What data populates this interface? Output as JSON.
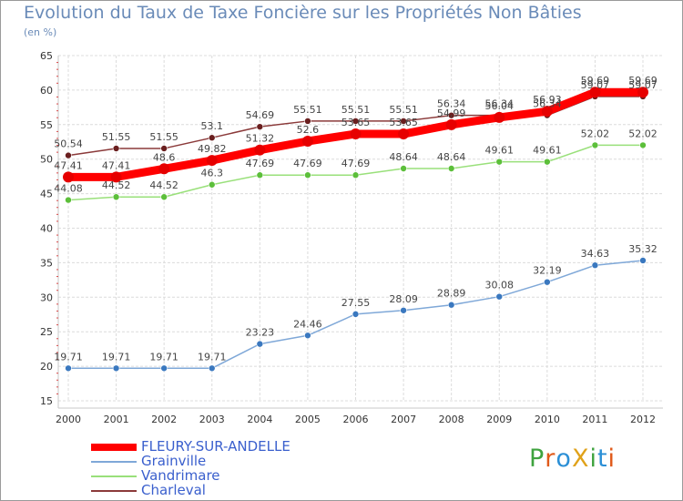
{
  "title": "Evolution du Taux de Taxe Foncière sur les Propriétés Non Bâties",
  "subtitle": "(en %)",
  "logo": {
    "text": "ProXiti",
    "colors": [
      "#3fa33f",
      "#e05a1a",
      "#2b8fd6",
      "#e0a21a",
      "#3fa33f",
      "#2b8fd6",
      "#e05a1a"
    ]
  },
  "chart_data": {
    "type": "line",
    "title": "Evolution du Taux de Taxe Foncière sur les Propriétés Non Bâties",
    "ylabel": "(en %)",
    "xlabel": "",
    "categories": [
      "2000",
      "2001",
      "2002",
      "2003",
      "2004",
      "2005",
      "2006",
      "2007",
      "2008",
      "2009",
      "2010",
      "2011",
      "2012"
    ],
    "ylim": [
      15,
      65
    ],
    "yticks": [
      15,
      20,
      25,
      30,
      35,
      40,
      45,
      50,
      55,
      60,
      65
    ],
    "grid": true,
    "legend": "bottom-left",
    "series": [
      {
        "name": "FLEURY-SUR-ANDELLE",
        "color": "#ff0000",
        "marker": "#e60000",
        "values": [
          47.41,
          47.41,
          48.6,
          49.82,
          51.32,
          52.6,
          53.65,
          53.65,
          54.99,
          56.04,
          56.93,
          59.69,
          59.69
        ],
        "labels": [
          "47.41",
          "47.41",
          "48.6",
          "49.82",
          "51.32",
          "52.6",
          "53.65",
          "53.65",
          "54.99",
          "56.04",
          "56.93",
          "59.69",
          "59.69"
        ]
      },
      {
        "name": "Grainville",
        "color": "#7fa8d8",
        "marker": "#3a78bf",
        "values": [
          19.71,
          19.71,
          19.71,
          19.71,
          23.23,
          24.46,
          27.55,
          28.09,
          28.89,
          30.08,
          32.19,
          34.63,
          35.32
        ],
        "labels": [
          "19.71",
          "19.71",
          "19.71",
          "19.71",
          "23.23",
          "24.46",
          "27.55",
          "28.09",
          "28.89",
          "30.08",
          "32.19",
          "34.63",
          "35.32"
        ]
      },
      {
        "name": "Vandrimare",
        "color": "#99e07a",
        "marker": "#5cbf3a",
        "values": [
          44.08,
          44.52,
          44.52,
          46.3,
          47.69,
          47.69,
          47.69,
          48.64,
          48.64,
          49.61,
          49.61,
          52.02,
          52.02
        ],
        "labels": [
          "44.08",
          "44.52",
          "44.52",
          "46.3",
          "47.69",
          "47.69",
          "47.69",
          "48.64",
          "48.64",
          "49.61",
          "49.61",
          "52.02",
          "52.02"
        ]
      },
      {
        "name": "Charleval",
        "color": "#8b3a3a",
        "marker": "#6a1f1f",
        "values": [
          50.54,
          51.55,
          51.55,
          53.1,
          54.69,
          55.51,
          55.51,
          55.51,
          56.34,
          56.34,
          56.34,
          59.07,
          59.07
        ],
        "labels": [
          "50.54",
          "51.55",
          "51.55",
          "53.1",
          "54.69",
          "55.51",
          "55.51",
          "55.51",
          "56.34",
          "56.34",
          "56.34",
          "59.07",
          "59.07"
        ]
      }
    ]
  }
}
